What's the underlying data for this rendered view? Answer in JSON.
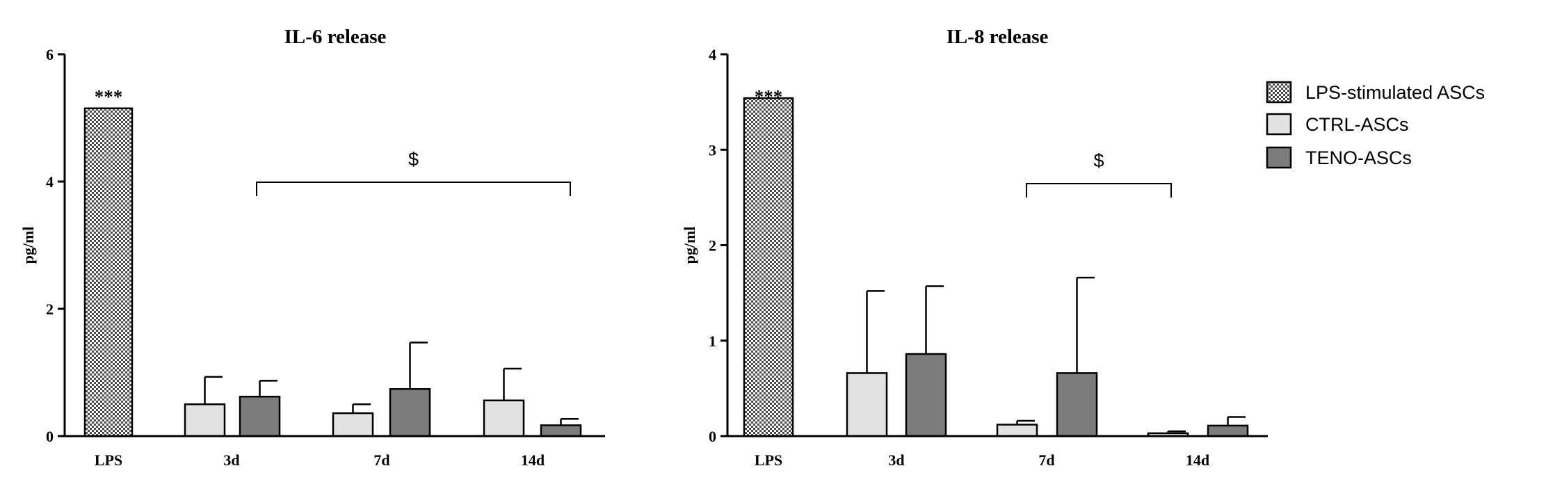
{
  "chart_data": [
    {
      "type": "bar",
      "title": "IL-6 release",
      "ylabel": "pg/ml",
      "xlabel": "",
      "ylim": [
        0,
        6
      ],
      "yticks": [
        0,
        2,
        4,
        6
      ],
      "categories": [
        "LPS",
        "3d",
        "7d",
        "14d"
      ],
      "series": [
        {
          "name": "LPS-stimulated ASCs",
          "values": [
            5.15,
            null,
            null,
            null
          ],
          "errors": [
            0,
            null,
            null,
            null
          ]
        },
        {
          "name": "CTRL-ASCs",
          "values": [
            null,
            0.5,
            0.36,
            0.56
          ],
          "errors": [
            null,
            0.43,
            0.14,
            0.5
          ]
        },
        {
          "name": "TENO-ASCs",
          "values": [
            null,
            0.62,
            0.74,
            0.17
          ],
          "errors": [
            null,
            0.25,
            0.73,
            0.1
          ]
        }
      ],
      "annotations": [
        {
          "text": "***",
          "category": "LPS"
        },
        {
          "text": "$",
          "from": "3d",
          "to": "14d"
        }
      ]
    },
    {
      "type": "bar",
      "title": "IL-8 release",
      "ylabel": "pg/ml",
      "xlabel": "",
      "ylim": [
        0,
        4
      ],
      "yticks": [
        0,
        1,
        2,
        3,
        4
      ],
      "categories": [
        "LPS",
        "3d",
        "7d",
        "14d"
      ],
      "series": [
        {
          "name": "LPS-stimulated ASCs",
          "values": [
            3.54,
            null,
            null,
            null
          ],
          "errors": [
            0,
            null,
            null,
            null
          ]
        },
        {
          "name": "CTRL-ASCs",
          "values": [
            null,
            0.66,
            0.12,
            0.03
          ],
          "errors": [
            null,
            0.86,
            0.04,
            0.02
          ]
        },
        {
          "name": "TENO-ASCs",
          "values": [
            null,
            0.86,
            0.66,
            0.11
          ],
          "errors": [
            null,
            0.71,
            1.0,
            0.09
          ]
        }
      ],
      "annotations": [
        {
          "text": "***",
          "category": "LPS"
        },
        {
          "text": "$",
          "from": "7d",
          "to": "14d"
        }
      ]
    }
  ],
  "legend": {
    "placement": "top-right",
    "items": [
      {
        "label": "LPS-stimulated ASCs",
        "pattern": "checker"
      },
      {
        "label": "CTRL-ASCs",
        "fill": "#e2e2e2"
      },
      {
        "label": "TENO-ASCs",
        "fill": "#7c7c7c"
      }
    ]
  },
  "colors": {
    "ctrl": "#e2e2e2",
    "teno": "#7c7c7c",
    "lps_dark": "#4a4a4a",
    "lps_light": "#ffffff"
  }
}
